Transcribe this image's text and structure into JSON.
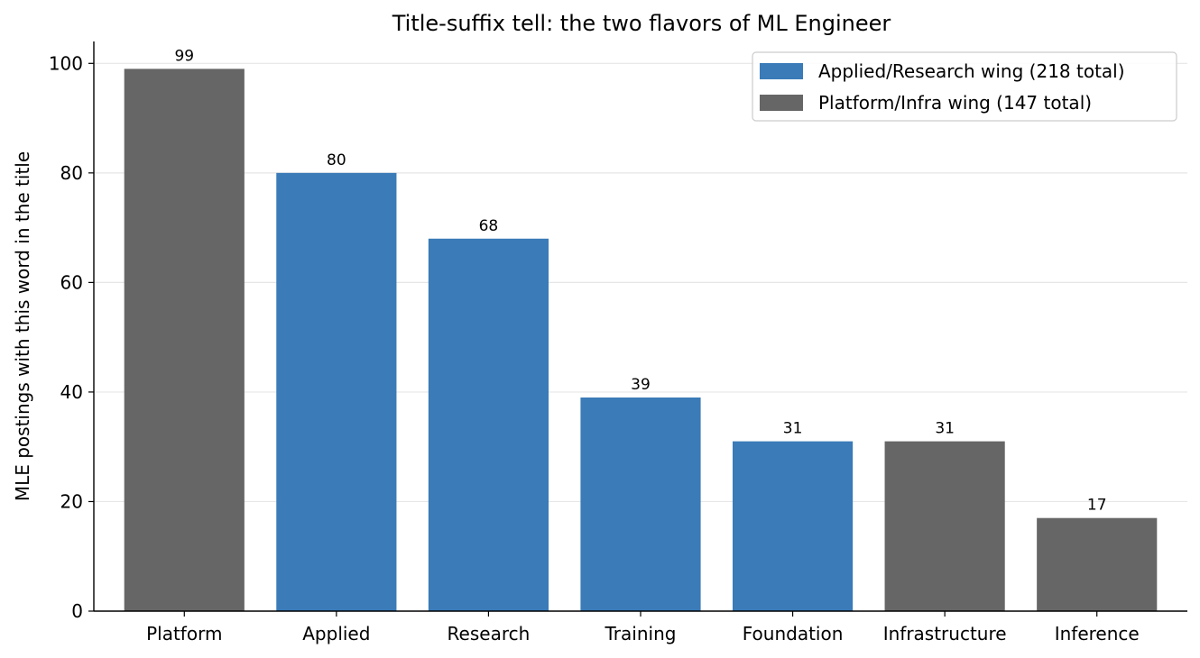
{
  "chart_data": {
    "type": "bar",
    "title": "Title-suffix tell: the two flavors of ML Engineer",
    "xlabel": "",
    "ylabel": "MLE postings with this word in the title",
    "ylim": [
      0,
      104
    ],
    "yticks": [
      0,
      20,
      40,
      60,
      80,
      100
    ],
    "grid": "y",
    "legend_position": "top-right",
    "categories": [
      "Platform",
      "Applied",
      "Research",
      "Training",
      "Foundation",
      "Infrastructure",
      "Inference"
    ],
    "values": [
      99,
      80,
      68,
      39,
      31,
      31,
      17
    ],
    "groups": [
      "platform",
      "applied",
      "applied",
      "applied",
      "applied",
      "platform",
      "platform"
    ],
    "legend": [
      {
        "key": "applied",
        "label": "Applied/Research wing (218 total)",
        "color": "#3a7bb8"
      },
      {
        "key": "platform",
        "label": "Platform/Infra wing (147 total)",
        "color": "#666666"
      }
    ]
  }
}
